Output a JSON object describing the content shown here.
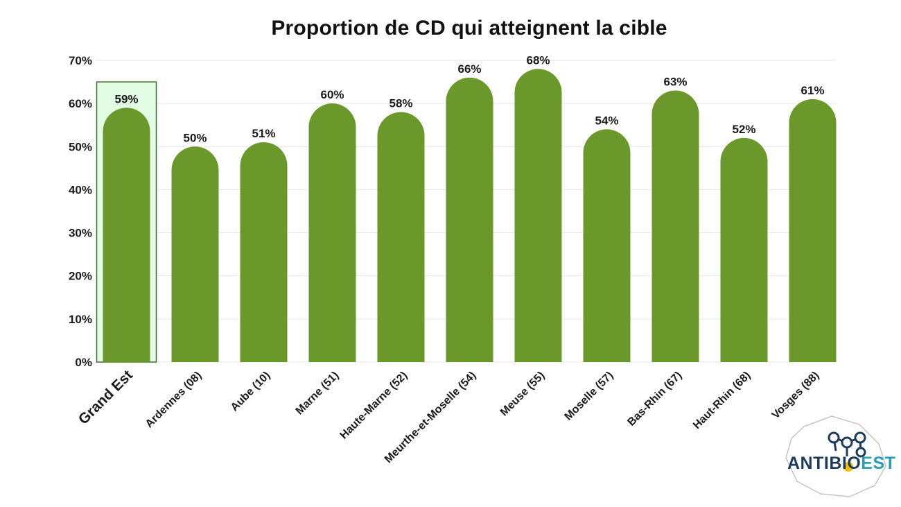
{
  "chart_data": {
    "type": "bar",
    "title": "Proportion de CD qui atteignent la cible",
    "categories": [
      "Grand Est",
      "Ardennes (08)",
      "Aube (10)",
      "Marne (51)",
      "Haute-Marne (52)",
      "Meurthe-et-Moselle (54)",
      "Meuse (55)",
      "Moselle (57)",
      "Bas-Rhin (67)",
      "Haut-Rhin (68)",
      "Vosges (88)"
    ],
    "values": [
      59,
      50,
      51,
      60,
      58,
      66,
      68,
      54,
      63,
      52,
      61
    ],
    "data_labels": [
      "59%",
      "50%",
      "51%",
      "60%",
      "58%",
      "66%",
      "68%",
      "54%",
      "63%",
      "52%",
      "61%"
    ],
    "highlighted_category": "Grand Est",
    "ylim": [
      0,
      70
    ],
    "yticks": [
      0,
      10,
      20,
      30,
      40,
      50,
      60,
      70
    ],
    "ytick_labels": [
      "0%",
      "10%",
      "20%",
      "30%",
      "40%",
      "50%",
      "60%",
      "70%"
    ],
    "xlabel": "",
    "ylabel": "",
    "grid": true,
    "colors": {
      "bar": "#6b982b",
      "highlight_fill": "#e2fde4",
      "highlight_border": "#3f6d2e",
      "highlight_label": "#6b982b",
      "grid": "#e6e6e6",
      "text": "#1a1a1a"
    }
  },
  "logo": {
    "part1": "ANTIBIO",
    "part2": "EST"
  }
}
